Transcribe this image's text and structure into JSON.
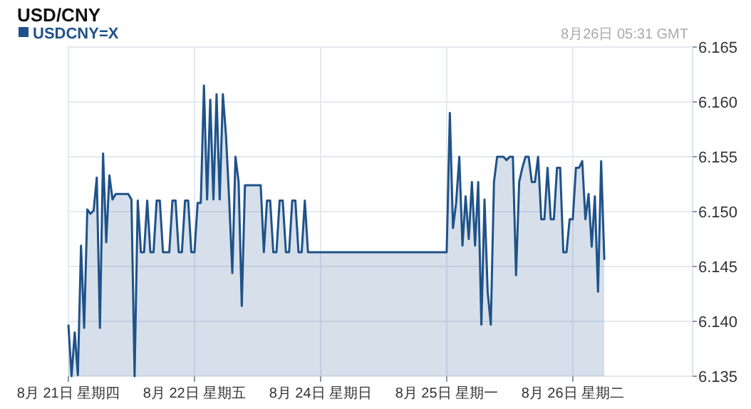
{
  "chart_data": {
    "type": "area",
    "title": "USD/CNY",
    "annotations": [
      "8月26日 05:31 GMT"
    ],
    "categories": [
      "8月 21日 星期四",
      null,
      null,
      null,
      null,
      null,
      null,
      null,
      null,
      null,
      null,
      null,
      null,
      null,
      null,
      null,
      null,
      null,
      null,
      null,
      null,
      null,
      null,
      null,
      null,
      null,
      null,
      null,
      null,
      null,
      null,
      null,
      null,
      null,
      null,
      null,
      null,
      null,
      null,
      null,
      "8月 22日 星期五",
      null,
      null,
      null,
      null,
      null,
      null,
      null,
      null,
      null,
      null,
      null,
      null,
      null,
      null,
      null,
      null,
      null,
      null,
      null,
      null,
      null,
      null,
      null,
      null,
      null,
      null,
      null,
      null,
      null,
      null,
      null,
      null,
      null,
      null,
      null,
      null,
      null,
      null,
      null,
      "8月 24日 星期日",
      null,
      null,
      null,
      null,
      null,
      null,
      null,
      null,
      null,
      null,
      null,
      null,
      null,
      null,
      null,
      null,
      null,
      null,
      null,
      null,
      null,
      null,
      null,
      null,
      null,
      null,
      null,
      null,
      null,
      null,
      null,
      null,
      null,
      null,
      null,
      null,
      null,
      null,
      null,
      "8月 25日 星期一",
      null,
      null,
      null,
      null,
      null,
      null,
      null,
      null,
      null,
      null,
      null,
      null,
      null,
      null,
      null,
      null,
      null,
      null,
      null,
      null,
      null,
      null,
      null,
      null,
      null,
      null,
      null,
      null,
      null,
      null,
      null,
      null,
      null,
      null,
      null,
      null,
      null,
      null,
      null,
      "8月 26日 星期二",
      null,
      null,
      null,
      null,
      null,
      null,
      null,
      null,
      null,
      null,
      null,
      null,
      null,
      null,
      null,
      null,
      null,
      null,
      null,
      null,
      null,
      null,
      null,
      null,
      null,
      null,
      null,
      null,
      null,
      null,
      null,
      null,
      null,
      null,
      null,
      null,
      null,
      null
    ],
    "series": [
      {
        "name": "USDCNY=X",
        "color": "#1f5289",
        "values": [
          6.1397,
          6.135,
          6.139,
          6.1351,
          6.1469,
          6.1394,
          6.1502,
          6.1498,
          6.1501,
          6.1531,
          6.1394,
          6.1553,
          6.1472,
          6.1533,
          6.1511,
          6.1516,
          6.1516,
          6.1516,
          6.1516,
          6.1516,
          6.1511,
          6.135,
          6.151,
          6.1463,
          6.1463,
          6.151,
          6.1463,
          6.1463,
          6.151,
          6.151,
          6.1463,
          6.1463,
          6.1463,
          6.151,
          6.151,
          6.1463,
          6.1463,
          6.151,
          6.151,
          6.1463,
          6.1463,
          6.1508,
          6.1508,
          6.1615,
          6.1511,
          6.1602,
          6.1511,
          6.1607,
          6.1511,
          6.1607,
          6.1569,
          6.1511,
          6.1444,
          6.155,
          6.1527,
          6.1414,
          6.1524,
          6.1524,
          6.1524,
          6.1524,
          6.1524,
          6.1524,
          6.1463,
          6.151,
          6.151,
          6.1463,
          6.1463,
          6.151,
          6.151,
          6.1463,
          6.1463,
          6.151,
          6.151,
          6.1463,
          6.1463,
          6.151,
          6.1463,
          6.1463,
          6.1463,
          6.1463,
          6.1463,
          6.1463,
          6.1463,
          6.1463,
          6.1463,
          6.1463,
          6.1463,
          6.1463,
          6.1463,
          6.1463,
          6.1463,
          6.1463,
          6.1463,
          6.1463,
          6.1463,
          6.1463,
          6.1463,
          6.1463,
          6.1463,
          6.1463,
          6.1463,
          6.1463,
          6.1463,
          6.1463,
          6.1463,
          6.1463,
          6.1463,
          6.1463,
          6.1463,
          6.1463,
          6.1463,
          6.1463,
          6.1463,
          6.1463,
          6.1463,
          6.1463,
          6.1463,
          6.1463,
          6.1463,
          6.1463,
          6.1463,
          6.159,
          6.1485,
          6.1508,
          6.155,
          6.1469,
          6.1514,
          6.1475,
          6.1527,
          6.1469,
          6.1527,
          6.1397,
          6.1511,
          6.1427,
          6.1397,
          6.1527,
          6.155,
          6.155,
          6.155,
          6.1547,
          6.155,
          6.155,
          6.1442,
          6.1527,
          6.154,
          6.155,
          6.155,
          6.1527,
          6.1527,
          6.155,
          6.1493,
          6.1493,
          6.154,
          6.1493,
          6.1493,
          6.154,
          6.154,
          6.1463,
          6.1463,
          6.1493,
          6.1493,
          6.154,
          6.154,
          6.1546,
          6.1493,
          6.1516,
          6.1468,
          6.1514,
          6.1427,
          6.1546,
          6.1456,
          null,
          null,
          null,
          null,
          null,
          null,
          null,
          null,
          null,
          null,
          null,
          null,
          null,
          null,
          null,
          null,
          null,
          null,
          null,
          null,
          null,
          null,
          null,
          null,
          null,
          null,
          null,
          null
        ]
      }
    ],
    "ylim": [
      6.135,
      6.165
    ],
    "yticks": [
      6.135,
      {
        "value": 6.14,
        "label": "6.140"
      },
      6.145,
      {
        "value": 6.15,
        "label": "6.150"
      },
      6.155,
      {
        "value": 6.16,
        "label": "6.160"
      },
      6.165
    ],
    "grid": true,
    "legend": "top left"
  }
}
